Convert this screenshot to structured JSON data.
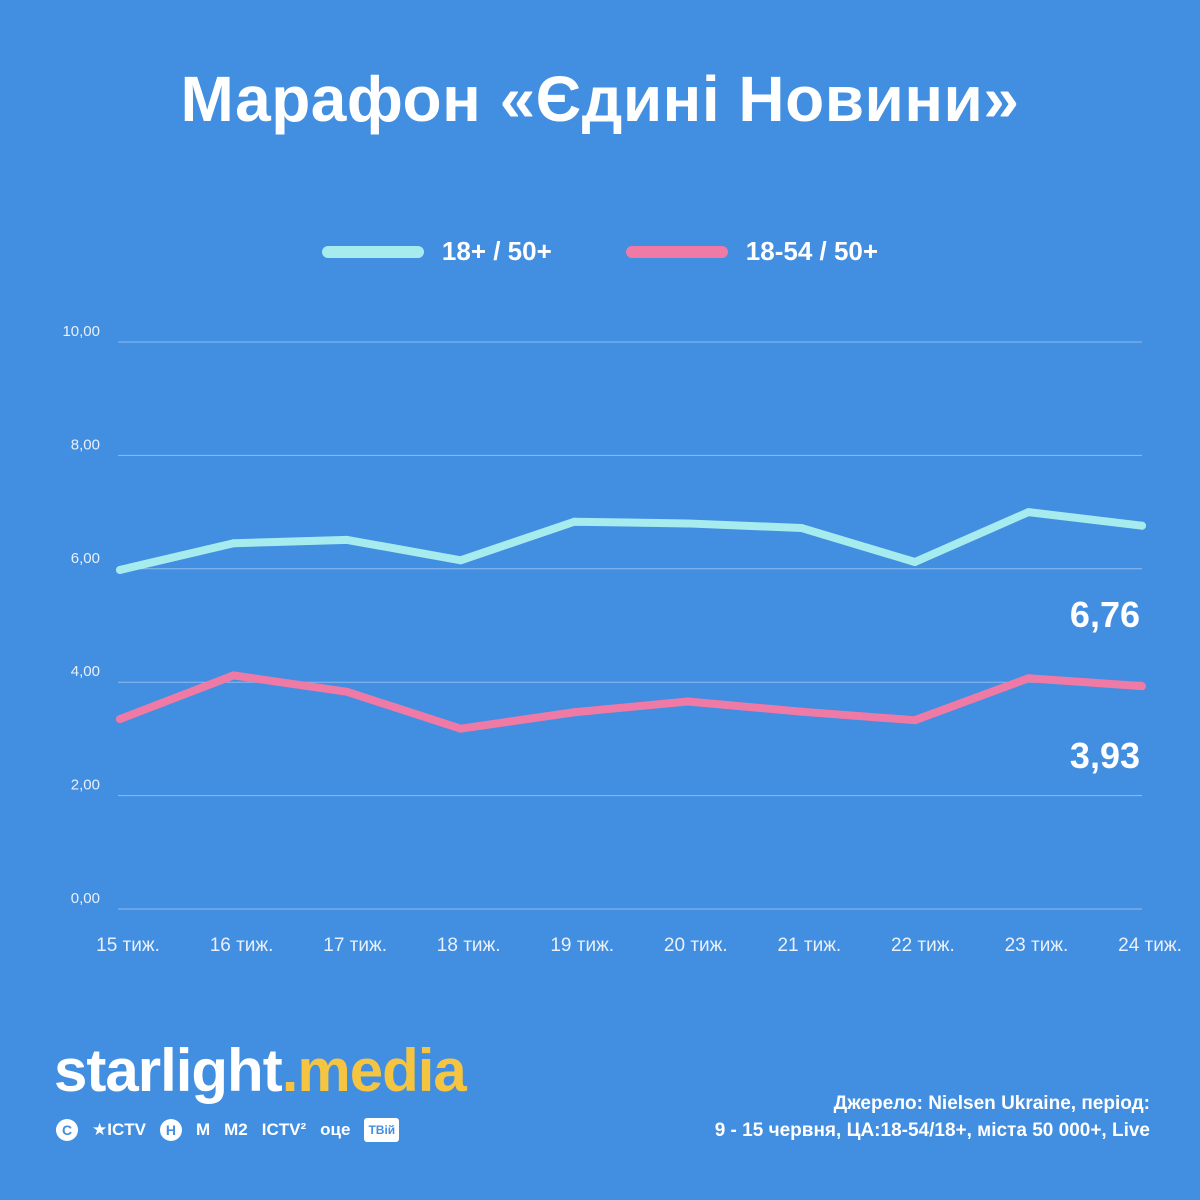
{
  "title": "Марафон «Єдині Новини»",
  "legend": [
    {
      "label": "18+ / 50+",
      "color": "#a6ecef"
    },
    {
      "label": "18-54 / 50+",
      "color": "#f07aa6"
    }
  ],
  "chart_data": {
    "type": "line",
    "categories": [
      "15 тиж.",
      "16 тиж.",
      "17 тиж.",
      "18 тиж.",
      "19 тиж.",
      "20 тиж.",
      "21 тиж.",
      "22 тиж.",
      "23 тиж.",
      "24 тиж."
    ],
    "series": [
      {
        "name": "18+ / 50+",
        "color": "#a6ecef",
        "values": [
          5.98,
          6.45,
          6.51,
          6.15,
          6.83,
          6.8,
          6.72,
          6.12,
          7.0,
          6.76
        ]
      },
      {
        "name": "18-54 / 50+",
        "color": "#f07aa6",
        "values": [
          3.35,
          4.12,
          3.83,
          3.18,
          3.47,
          3.66,
          3.48,
          3.33,
          4.07,
          3.93
        ]
      }
    ],
    "end_labels": [
      "6,76",
      "3,93"
    ],
    "ylim": [
      0,
      10
    ],
    "yticks": [
      "0,00",
      "2,00",
      "4,00",
      "6,00",
      "8,00",
      "10,00"
    ],
    "grid": true,
    "legend_position": "top"
  },
  "brand": {
    "part1": "starlight",
    "part2": ".media"
  },
  "channels": [
    "C",
    "★ICTV",
    "Н",
    "M",
    "M2",
    "ICTV²",
    "оце",
    "ТВій"
  ],
  "source": {
    "line1": "Джерело: Nielsen Ukraine, період:",
    "line2": "9 - 15 червня, ЦА:18-54/18+, міста 50 000+, Live"
  }
}
